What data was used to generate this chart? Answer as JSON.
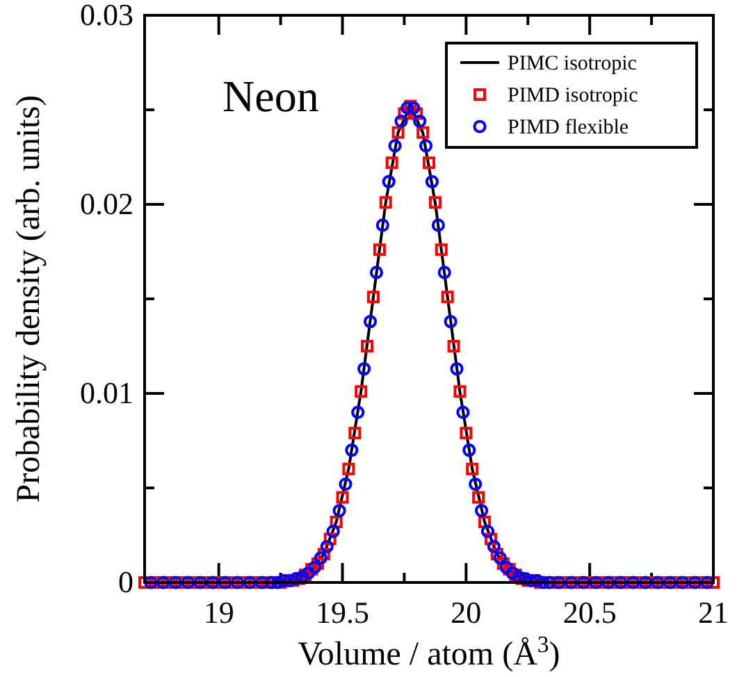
{
  "chart_data": {
    "type": "scatter",
    "title": "Neon",
    "xlabel": "Volume / atom  (Å$^{3}$)",
    "ylabel": "Probability  density  (arb. units)",
    "xlim": [
      18.7,
      21
    ],
    "xticks": [
      19,
      {
        "value": 19.25,
        "label": null
      },
      19.5,
      {
        "value": 19.75,
        "label": null
      },
      20,
      {
        "value": 20.25,
        "label": null
      },
      20.5,
      {
        "value": 20.75,
        "label": null
      },
      21
    ],
    "ylim": [
      0,
      0.03
    ],
    "yticks": [
      0,
      {
        "value": 0.005,
        "label": null
      },
      0.01,
      {
        "value": 0.015,
        "label": null
      },
      0.02,
      {
        "value": 0.025,
        "label": null
      },
      0.03
    ],
    "grid": false,
    "legend": "top right",
    "series": [
      {
        "name": "PIMC isotropic",
        "type": "line",
        "color": "#000000",
        "marker": "none",
        "line_style": "solid",
        "x": [
          18.7,
          19.2,
          19.225,
          19.275,
          19.325,
          19.375,
          19.425,
          19.475,
          19.525,
          19.575,
          19.625,
          19.675,
          19.725,
          19.775,
          19.825,
          19.875,
          19.925,
          19.975,
          20.025,
          20.075,
          20.125,
          20.175,
          20.225,
          20.275,
          20.325,
          20.35,
          21
        ],
        "values": [
          0,
          0,
          0,
          0.0001,
          0.0002,
          0.0007,
          0.0015,
          0.0032,
          0.006,
          0.0101,
          0.0151,
          0.0201,
          0.0238,
          0.0252,
          0.0238,
          0.0201,
          0.0151,
          0.0101,
          0.006,
          0.0032,
          0.0015,
          0.0007,
          0.0002,
          0.0001,
          0,
          0,
          0
        ]
      },
      {
        "name": "PIMD isotropic",
        "color": "#ff0000",
        "marker": "square",
        "x": [
          18.7,
          18.75,
          18.8,
          18.85,
          18.9,
          18.95,
          19,
          19.05,
          19.1,
          19.15,
          19.2,
          19.225,
          19.25,
          19.275,
          19.3,
          19.325,
          19.35,
          19.375,
          19.4,
          19.425,
          19.45,
          19.475,
          19.5,
          19.525,
          19.55,
          19.575,
          19.6,
          19.625,
          19.65,
          19.675,
          19.7,
          19.725,
          19.75,
          19.775,
          19.8,
          19.825,
          19.85,
          19.875,
          19.9,
          19.925,
          19.95,
          19.975,
          20,
          20.025,
          20.05,
          20.075,
          20.1,
          20.125,
          20.15,
          20.175,
          20.2,
          20.225,
          20.25,
          20.275,
          20.3,
          20.325,
          20.35,
          20.4,
          20.45,
          20.5,
          20.55,
          20.6,
          20.65,
          20.7,
          20.75,
          20.8,
          20.85,
          20.9,
          20.95,
          21
        ],
        "values": [
          0,
          0,
          0,
          0,
          0,
          0,
          0,
          0,
          0,
          0,
          0,
          0,
          0,
          0.0001,
          0.0001,
          0.0002,
          0.0004,
          0.0007,
          0.001,
          0.0015,
          0.0023,
          0.0032,
          0.0045,
          0.006,
          0.0079,
          0.0101,
          0.0125,
          0.0151,
          0.0176,
          0.0201,
          0.0222,
          0.0238,
          0.0248,
          0.0252,
          0.0248,
          0.0238,
          0.0222,
          0.0201,
          0.0176,
          0.0151,
          0.0125,
          0.0101,
          0.0079,
          0.006,
          0.0045,
          0.0032,
          0.0023,
          0.0015,
          0.001,
          0.0007,
          0.0004,
          0.0002,
          0.0001,
          0.0001,
          0,
          0,
          0,
          0,
          0,
          0,
          0,
          0,
          0,
          0,
          0,
          0,
          0,
          0,
          0,
          0
        ]
      },
      {
        "name": "PIMD flexible",
        "color": "#0000ff",
        "marker": "circle",
        "x": [
          18.725,
          18.775,
          18.825,
          18.875,
          18.925,
          18.975,
          19.025,
          19.075,
          19.125,
          19.175,
          19.2125,
          19.2375,
          19.2625,
          19.2875,
          19.3125,
          19.3375,
          19.3625,
          19.3875,
          19.4125,
          19.4375,
          19.4625,
          19.4875,
          19.5125,
          19.5375,
          19.5625,
          19.5875,
          19.6125,
          19.6375,
          19.6625,
          19.6875,
          19.7125,
          19.7375,
          19.7625,
          19.7875,
          19.8125,
          19.8375,
          19.8625,
          19.8875,
          19.9125,
          19.9375,
          19.9625,
          19.9875,
          20.0125,
          20.0375,
          20.0625,
          20.0875,
          20.1125,
          20.1375,
          20.1625,
          20.1875,
          20.2125,
          20.2375,
          20.2625,
          20.2875,
          20.3125,
          20.3375,
          20.375,
          20.425,
          20.475,
          20.525,
          20.575,
          20.625,
          20.675,
          20.725,
          20.775,
          20.825,
          20.875,
          20.925,
          20.975
        ],
        "values": [
          0,
          0,
          0,
          0,
          0,
          0,
          0,
          0,
          0,
          0,
          0,
          0,
          0.0001,
          0.0001,
          0.0002,
          0.0003,
          0.0005,
          0.0008,
          0.0013,
          0.0019,
          0.0027,
          0.0038,
          0.0052,
          0.007,
          0.009,
          0.0113,
          0.0138,
          0.0164,
          0.0189,
          0.0212,
          0.0231,
          0.0244,
          0.0251,
          0.0251,
          0.0244,
          0.0231,
          0.0212,
          0.0189,
          0.0164,
          0.0138,
          0.0113,
          0.009,
          0.007,
          0.0052,
          0.0038,
          0.0027,
          0.0019,
          0.0013,
          0.0008,
          0.0005,
          0.0003,
          0.0002,
          0.0001,
          0.0001,
          0,
          0,
          0,
          0,
          0,
          0,
          0,
          0,
          0,
          0,
          0,
          0,
          0,
          0,
          0
        ]
      }
    ]
  }
}
